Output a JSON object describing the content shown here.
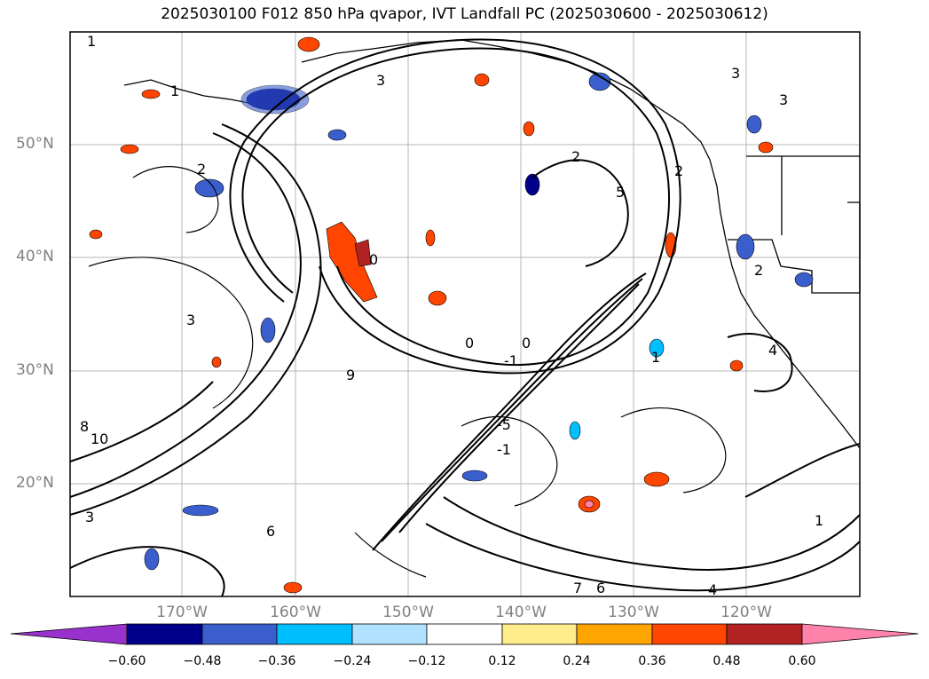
{
  "title": "2025030100 F012 850 hPa qvapor, IVT Landfall PC (2025030600 - 2025030612)",
  "map": {
    "lat_labels": [
      "50°N",
      "40°N",
      "30°N",
      "20°N"
    ],
    "lon_labels": [
      "170°W",
      "160°W",
      "150°W",
      "140°W",
      "130°W",
      "120°W"
    ],
    "contour_labels": [
      "1",
      "1",
      "3",
      "2",
      "3",
      "3",
      "3",
      "5",
      "2",
      "2",
      "0",
      "0",
      "0",
      "-1",
      "9",
      "-5",
      "-1",
      "1",
      "8",
      "10",
      "3",
      "6",
      "4",
      "7",
      "6",
      "2",
      "4",
      "1"
    ]
  },
  "colorbar": {
    "ticks": [
      "−0.60",
      "−0.48",
      "−0.36",
      "−0.24",
      "−0.12",
      "0.12",
      "0.24",
      "0.36",
      "0.48",
      "0.60"
    ],
    "colors": [
      "#9932cc",
      "#00008b",
      "#3a5fcd",
      "#00bfff",
      "#b0e2ff",
      "#ffffff",
      "#ffec8b",
      "#ffa500",
      "#ff4500",
      "#b22222",
      "#ff82ab"
    ]
  }
}
